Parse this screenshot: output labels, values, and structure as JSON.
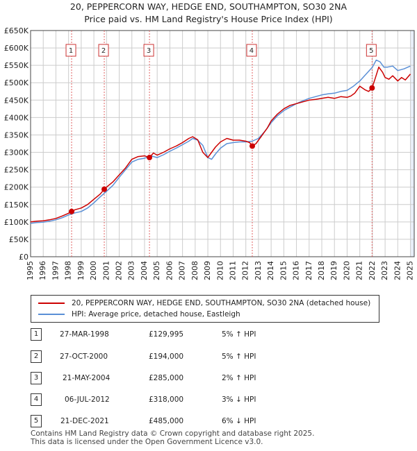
{
  "chart_data": {
    "type": "line",
    "title": "20, PEPPERCORN WAY, HEDGE END, SOUTHAMPTON, SO30 2NA",
    "subtitle": "Price paid vs. HM Land Registry's House Price Index (HPI)",
    "x_ticks": [
      "1995",
      "1996",
      "1997",
      "1998",
      "1999",
      "2000",
      "2001",
      "2002",
      "2003",
      "2004",
      "2005",
      "2006",
      "2007",
      "2008",
      "2009",
      "2010",
      "2011",
      "2012",
      "2013",
      "2014",
      "2015",
      "2016",
      "2017",
      "2018",
      "2019",
      "2020",
      "2021",
      "2022",
      "2023",
      "2024",
      "2025"
    ],
    "xlim": [
      1995,
      2025.3
    ],
    "y_ticks": [
      "£0",
      "£50K",
      "£100K",
      "£150K",
      "£200K",
      "£250K",
      "£300K",
      "£350K",
      "£400K",
      "£450K",
      "£500K",
      "£550K",
      "£600K",
      "£650K"
    ],
    "ylim": [
      0,
      650000
    ],
    "grid": true,
    "colors": {
      "price": "#cc0000",
      "hpi": "#5a8fd6",
      "marker_line": "#e06060",
      "shade": "#e8eef8"
    },
    "series": [
      {
        "name": "20, PEPPERCORN WAY, HEDGE END, SOUTHAMPTON, SO30 2NA (detached house)",
        "x": [
          1995.0,
          1995.5,
          1996.0,
          1996.5,
          1997.0,
          1997.5,
          1998.0,
          1998.24,
          1998.5,
          1999.0,
          1999.5,
          2000.0,
          2000.5,
          2000.82,
          2001.0,
          2001.5,
          2002.0,
          2002.5,
          2003.0,
          2003.5,
          2004.0,
          2004.39,
          2004.7,
          2005.0,
          2005.5,
          2006.0,
          2006.5,
          2007.0,
          2007.5,
          2007.8,
          2008.2,
          2008.6,
          2009.0,
          2009.3,
          2009.6,
          2010.0,
          2010.5,
          2011.0,
          2011.5,
          2012.0,
          2012.3,
          2012.51,
          2012.8,
          2013.2,
          2013.7,
          2014.0,
          2014.5,
          2015.0,
          2015.5,
          2016.0,
          2016.5,
          2017.0,
          2017.5,
          2018.0,
          2018.5,
          2019.0,
          2019.5,
          2020.0,
          2020.3,
          2020.6,
          2021.0,
          2021.4,
          2021.7,
          2021.97,
          2022.2,
          2022.5,
          2022.8,
          2023.0,
          2023.3,
          2023.6,
          2024.0,
          2024.3,
          2024.6,
          2025.0
        ],
        "values": [
          100000,
          102000,
          103000,
          106000,
          110000,
          117000,
          125000,
          129995,
          135000,
          140000,
          150000,
          165000,
          180000,
          194000,
          200000,
          215000,
          235000,
          255000,
          280000,
          288000,
          290000,
          285000,
          298000,
          292000,
          300000,
          310000,
          318000,
          328000,
          340000,
          345000,
          336000,
          300000,
          285000,
          300000,
          315000,
          330000,
          340000,
          335000,
          335000,
          332000,
          328000,
          318000,
          325000,
          345000,
          370000,
          390000,
          410000,
          425000,
          435000,
          440000,
          445000,
          450000,
          452000,
          455000,
          458000,
          455000,
          460000,
          458000,
          462000,
          470000,
          490000,
          480000,
          475000,
          485000,
          510000,
          545000,
          530000,
          515000,
          510000,
          520000,
          505000,
          515000,
          508000,
          525000
        ]
      },
      {
        "name": "HPI: Average price, detached house, Eastleigh",
        "x": [
          1995.0,
          1995.5,
          1996.0,
          1996.5,
          1997.0,
          1997.5,
          1998.0,
          1998.5,
          1999.0,
          1999.5,
          2000.0,
          2000.5,
          2001.0,
          2001.5,
          2002.0,
          2002.5,
          2003.0,
          2003.5,
          2004.0,
          2004.5,
          2005.0,
          2005.5,
          2006.0,
          2006.5,
          2007.0,
          2007.5,
          2007.8,
          2008.2,
          2008.6,
          2009.0,
          2009.3,
          2009.6,
          2010.0,
          2010.5,
          2011.0,
          2011.5,
          2012.0,
          2012.5,
          2013.0,
          2013.5,
          2014.0,
          2014.5,
          2015.0,
          2015.5,
          2016.0,
          2016.5,
          2017.0,
          2017.5,
          2018.0,
          2018.5,
          2019.0,
          2019.5,
          2020.0,
          2020.5,
          2021.0,
          2021.5,
          2022.0,
          2022.3,
          2022.6,
          2022.9,
          2023.2,
          2023.6,
          2024.0,
          2024.5,
          2025.0
        ],
        "values": [
          96000,
          98000,
          99000,
          102000,
          106000,
          112000,
          120000,
          126000,
          130000,
          140000,
          155000,
          172000,
          188000,
          205000,
          228000,
          250000,
          272000,
          280000,
          283000,
          290000,
          285000,
          293000,
          303000,
          312000,
          322000,
          332000,
          340000,
          335000,
          320000,
          285000,
          280000,
          295000,
          312000,
          325000,
          328000,
          330000,
          330000,
          332000,
          340000,
          360000,
          385000,
          405000,
          420000,
          430000,
          440000,
          448000,
          455000,
          460000,
          465000,
          468000,
          470000,
          475000,
          478000,
          490000,
          505000,
          525000,
          545000,
          565000,
          560000,
          545000,
          545000,
          548000,
          535000,
          540000,
          548000
        ]
      }
    ],
    "sales": [
      {
        "num": "1",
        "date": "27-MAR-1998",
        "price": "£129,995",
        "hpi": "5% ↑ HPI",
        "x": 1998.24,
        "value": 129995
      },
      {
        "num": "2",
        "date": "27-OCT-2000",
        "price": "£194,000",
        "hpi": "5% ↑ HPI",
        "x": 2000.82,
        "value": 194000
      },
      {
        "num": "3",
        "date": "21-MAY-2004",
        "price": "£285,000",
        "hpi": "2% ↑ HPI",
        "x": 2004.39,
        "value": 285000
      },
      {
        "num": "4",
        "date": "06-JUL-2012",
        "price": "£318,000",
        "hpi": "3% ↓ HPI",
        "x": 2012.51,
        "value": 318000
      },
      {
        "num": "5",
        "date": "21-DEC-2021",
        "price": "£485,000",
        "hpi": "6% ↓ HPI",
        "x": 2021.97,
        "value": 485000
      }
    ],
    "shade_from": 2025.0
  },
  "footer": {
    "line1": "Contains HM Land Registry data © Crown copyright and database right 2025.",
    "line2": "This data is licensed under the Open Government Licence v3.0."
  }
}
